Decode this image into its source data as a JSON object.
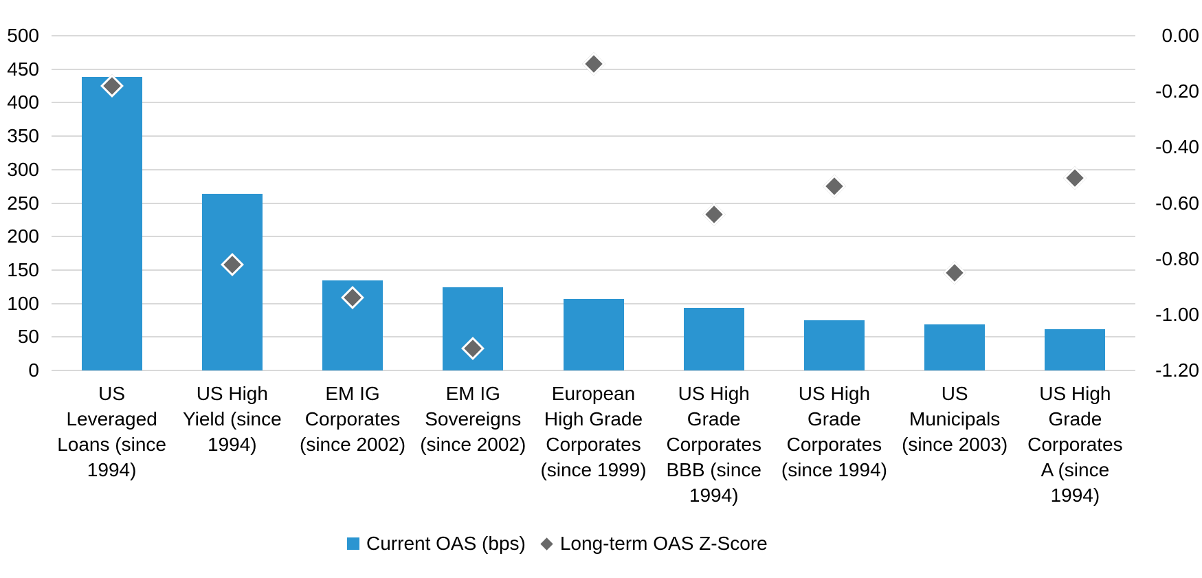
{
  "chart_data": {
    "type": "bar",
    "title": "",
    "categories": [
      "US Leveraged Loans (since 1994)",
      "US High Yield (since 1994)",
      "EM IG Corporates (since 2002)",
      "EM IG Sovereigns (since 2002)",
      "European High Grade Corporates (since 1999)",
      "US High Grade Corporates BBB (since 1994)",
      "US High Grade Corporates (since 1994)",
      "US Municipals (since 2003)",
      "US High Grade Corporates A (since 1994)"
    ],
    "category_label_lines": [
      [
        "US",
        "Leveraged",
        "Loans (since",
        "1994)"
      ],
      [
        "US High",
        "Yield (since",
        "1994)"
      ],
      [
        "EM IG",
        "Corporates",
        "(since 2002)"
      ],
      [
        "EM IG",
        "Sovereigns",
        "(since 2002)"
      ],
      [
        "European",
        "High Grade",
        "Corporates",
        "(since 1999)"
      ],
      [
        "US High",
        "Grade",
        "Corporates",
        "BBB (since",
        "1994)"
      ],
      [
        "US High",
        "Grade",
        "Corporates",
        "(since 1994)"
      ],
      [
        "US",
        "Municipals",
        "(since 2003)"
      ],
      [
        "US High",
        "Grade",
        "Corporates",
        "A (since",
        "1994)"
      ]
    ],
    "series": [
      {
        "name": "Current OAS (bps)",
        "kind": "bar",
        "axis": "left",
        "values": [
          438,
          264,
          134,
          124,
          107,
          93,
          75,
          69,
          62
        ]
      },
      {
        "name": "Long-term OAS Z-Score",
        "kind": "scatter-diamond",
        "axis": "right",
        "values": [
          -0.18,
          -0.82,
          -0.94,
          -1.12,
          -0.1,
          -0.64,
          -0.54,
          -0.85,
          -0.51
        ]
      }
    ],
    "left_axis": {
      "min": 0,
      "max": 500,
      "tick_interval": 50,
      "tick_labels": [
        "500",
        "450",
        "400",
        "350",
        "300",
        "250",
        "200",
        "150",
        "100",
        "50",
        "0"
      ]
    },
    "right_axis": {
      "min": -1.2,
      "max": 0,
      "tick_interval": 0.2,
      "tick_labels": [
        "0.00",
        "-0.20",
        "-0.40",
        "-0.60",
        "-0.80",
        "-1.00",
        "-1.20"
      ]
    },
    "grid": true,
    "legend_position": "bottom"
  },
  "colors": {
    "bar_fill": "#2B95D1",
    "marker_fill": "#686868",
    "marker_border": "#FFFFFF",
    "gridline": "#D9D9D9",
    "text": "#000000",
    "background": "#FFFFFF"
  }
}
